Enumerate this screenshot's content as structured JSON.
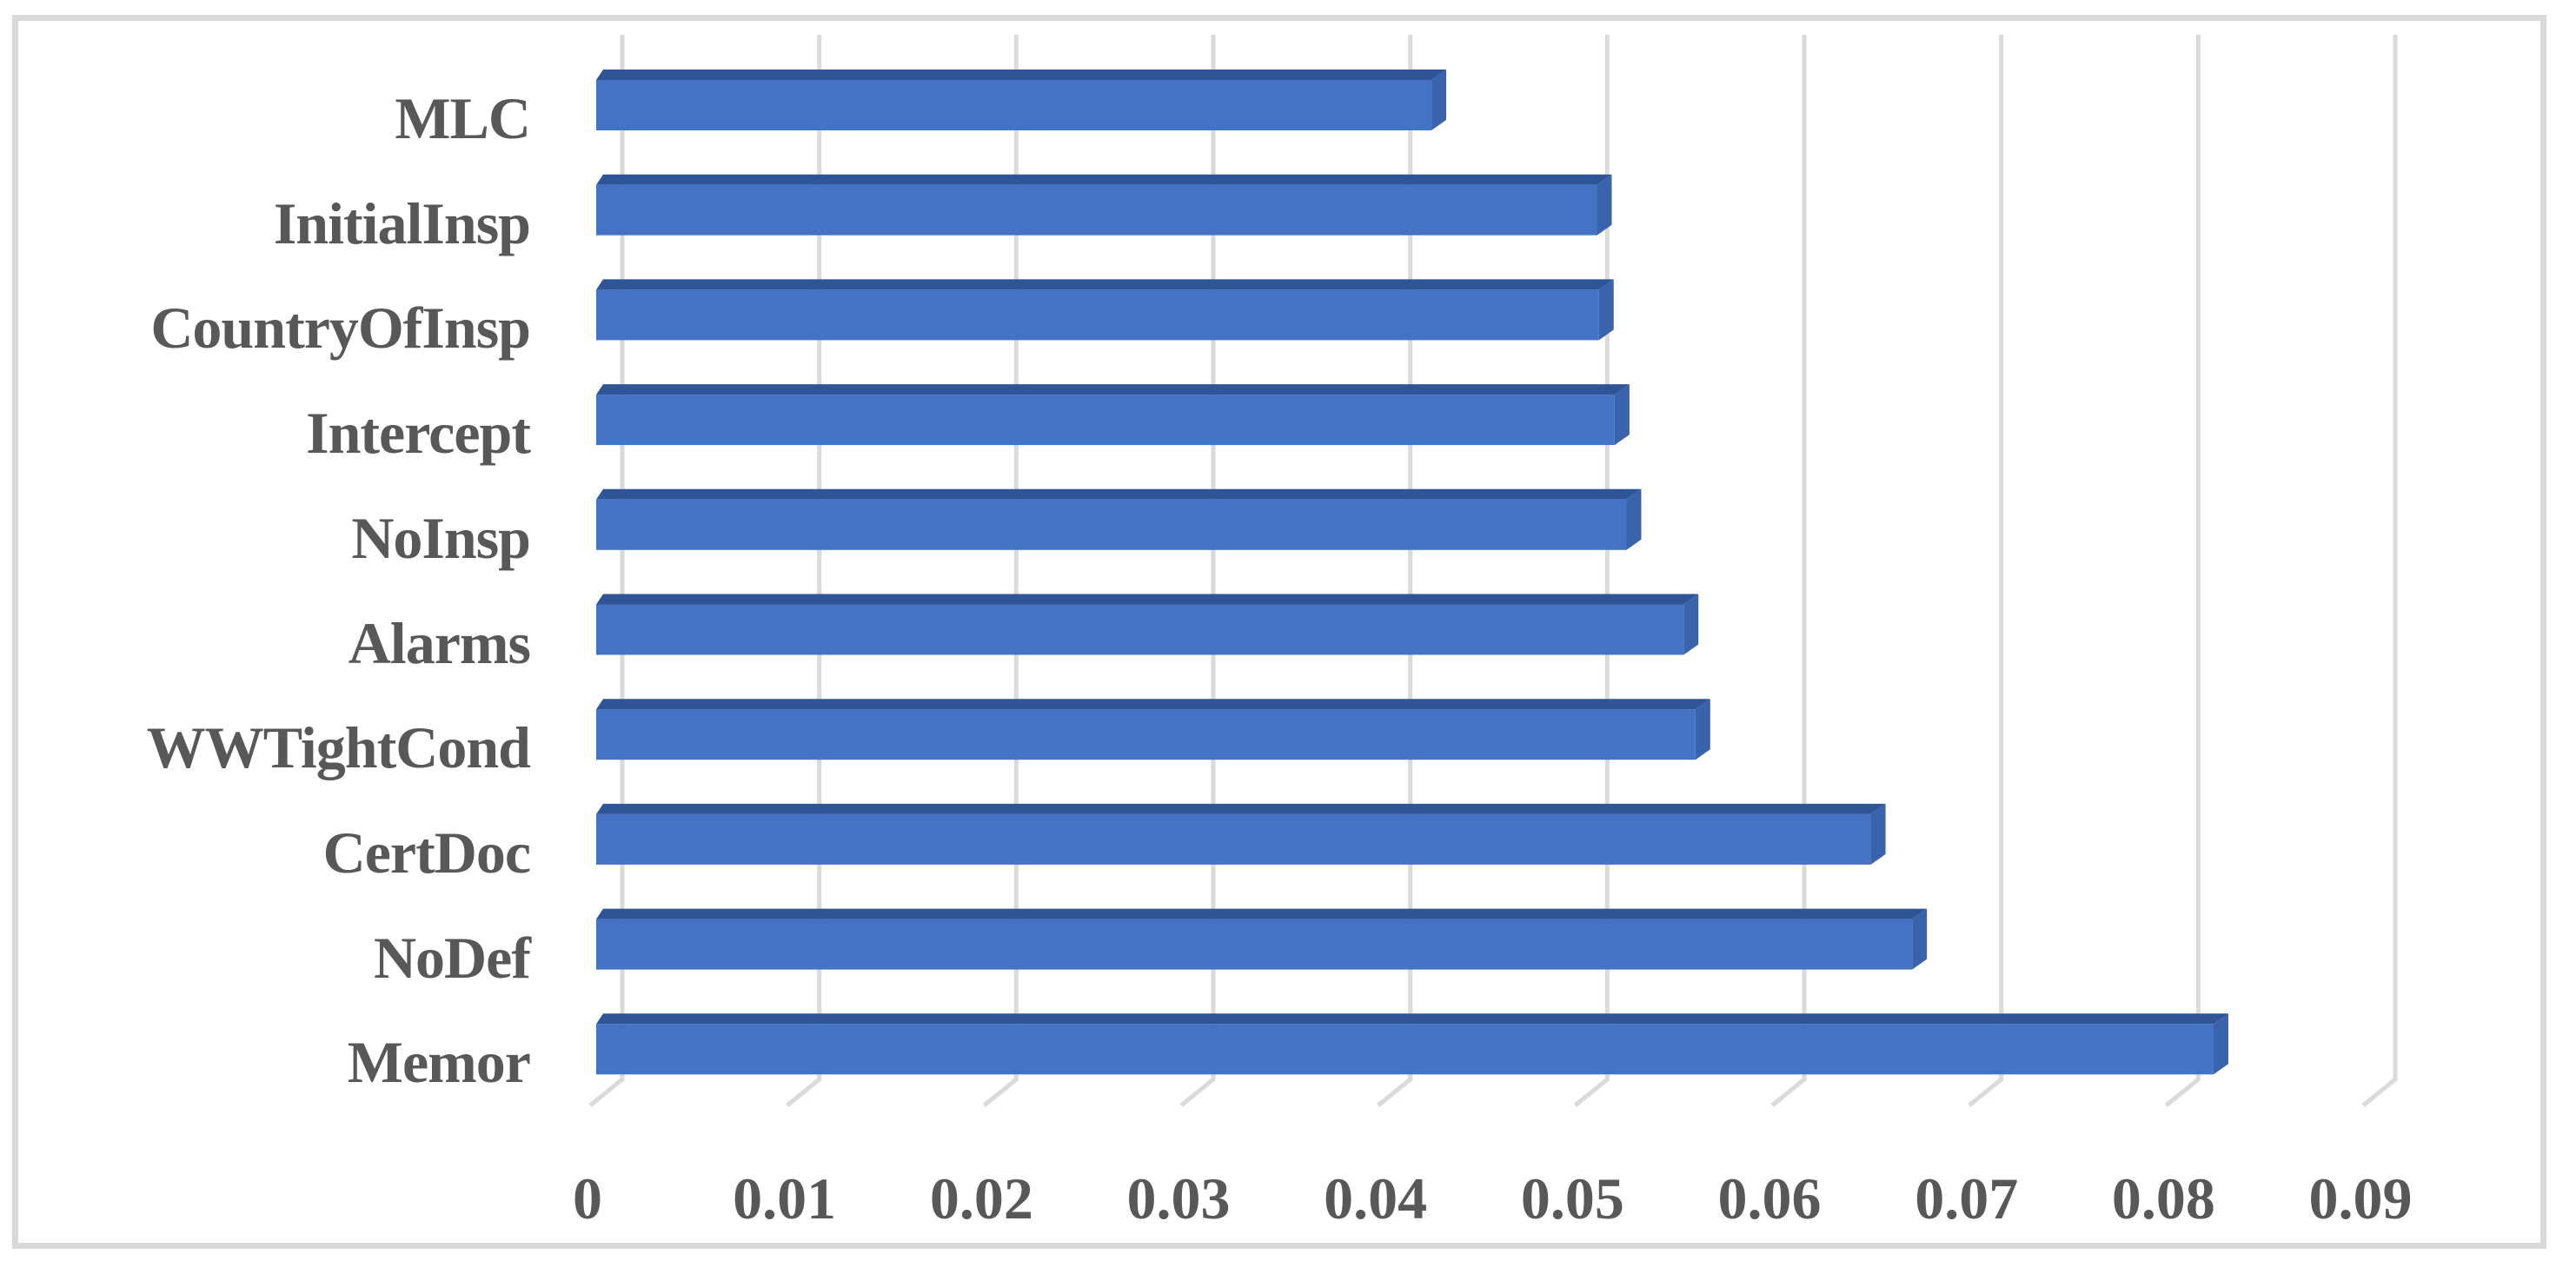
{
  "chart_data": {
    "type": "bar",
    "orientation": "horizontal",
    "style": "3d-cylinder-free horizontal bar chart, Excel-like, no title, no legend",
    "title": "",
    "xlabel": "",
    "ylabel": "",
    "categories": [
      "MLC",
      "InitialInsp",
      "CountryOfInsp",
      "Intercept",
      "NoInsp",
      "Alarms",
      "WWTightCond",
      "CertDoc",
      "NoDef",
      "Memor"
    ],
    "values": [
      0.0424,
      0.0508,
      0.0509,
      0.0517,
      0.0523,
      0.0552,
      0.0558,
      0.0647,
      0.0668,
      0.0821
    ],
    "values_rounded": [
      0.042,
      0.051,
      0.051,
      0.052,
      0.052,
      0.055,
      0.056,
      0.065,
      0.067,
      0.082
    ],
    "x_ticks": [
      "0",
      "0.01",
      "0.02",
      "0.03",
      "0.04",
      "0.05",
      "0.06",
      "0.07",
      "0.08",
      "0.09"
    ],
    "x_tick_values": [
      0,
      0.01,
      0.02,
      0.03,
      0.04,
      0.05,
      0.06,
      0.07,
      0.08,
      0.09
    ],
    "xlim": [
      0,
      0.09
    ],
    "grid": "vertical-gridlines-with-3d-feet",
    "legend": "none",
    "colors": {
      "bar_front": "#4472c4",
      "bar_top": "#2f5597",
      "bar_side": "#3a63ae",
      "gridline": "#dadada",
      "frame_border": "#d9d9d9",
      "label_text": "#585858",
      "background": "#ffffff"
    }
  }
}
